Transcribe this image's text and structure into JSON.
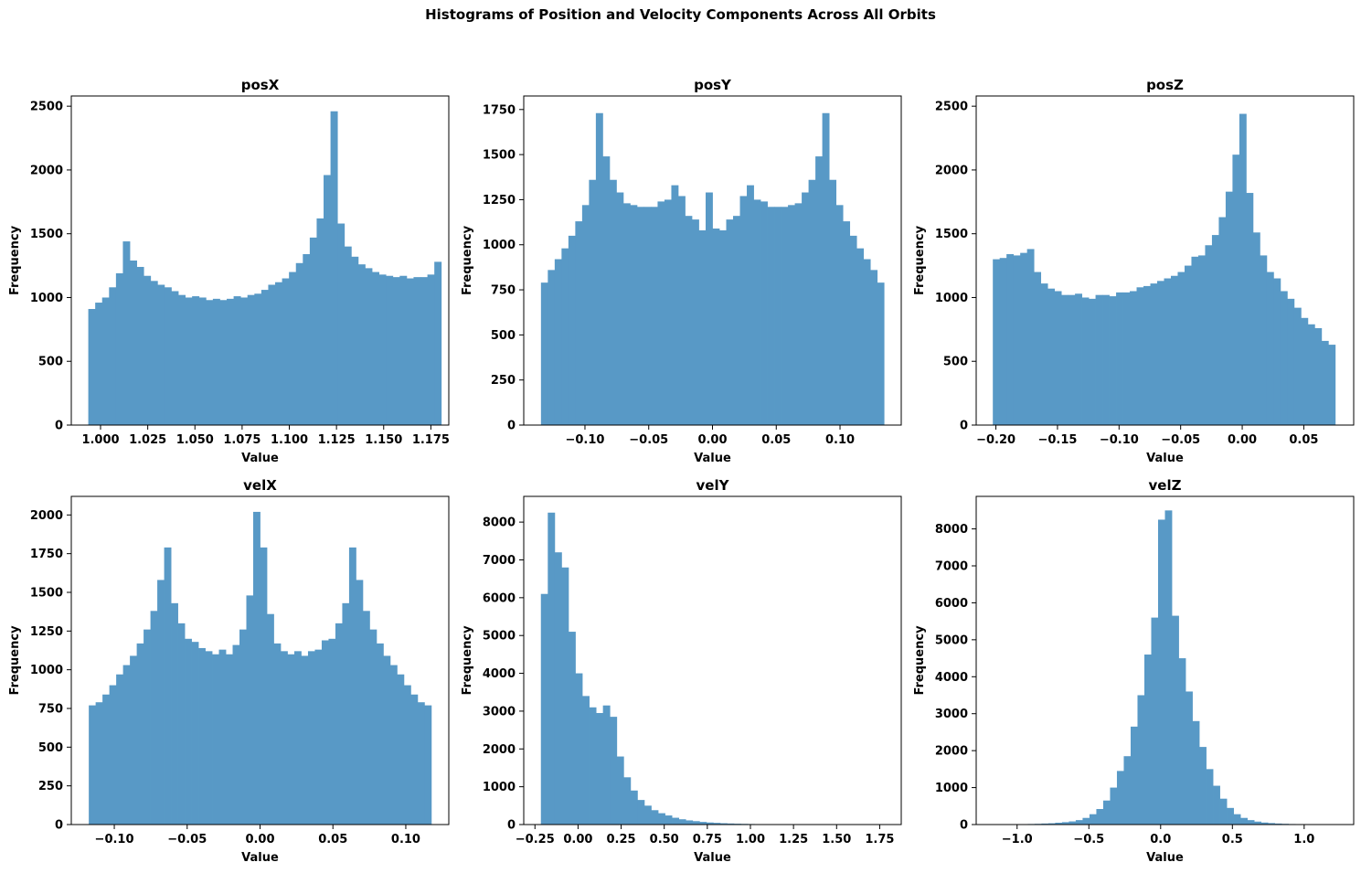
{
  "suptitle": "Histograms of Position and Velocity Components Across All Orbits",
  "chart_data": [
    {
      "type": "bar",
      "title": "posX",
      "xlabel": "Value",
      "ylabel": "Frequency",
      "bar_color": "#5899c6",
      "xlim": [
        0.9845,
        1.1845
      ],
      "ylim": [
        0,
        2580
      ],
      "xticks": [
        1.0,
        1.025,
        1.05,
        1.075,
        1.1,
        1.125,
        1.15,
        1.175
      ],
      "xtick_labels": [
        "1.000",
        "1.025",
        "1.050",
        "1.075",
        "1.100",
        "1.125",
        "1.150",
        "1.175"
      ],
      "yticks": [
        0,
        500,
        1000,
        1500,
        2000,
        2500
      ],
      "ytick_labels": [
        "0",
        "500",
        "1000",
        "1500",
        "2000",
        "2500"
      ],
      "bin_range": [
        0.9935,
        1.1805
      ],
      "values": [
        910,
        960,
        1000,
        1080,
        1190,
        1440,
        1290,
        1240,
        1170,
        1130,
        1100,
        1080,
        1050,
        1020,
        1000,
        1010,
        1000,
        980,
        990,
        980,
        990,
        1010,
        1000,
        1020,
        1030,
        1060,
        1100,
        1120,
        1150,
        1200,
        1270,
        1340,
        1470,
        1620,
        1960,
        2460,
        1580,
        1400,
        1320,
        1260,
        1230,
        1200,
        1180,
        1170,
        1160,
        1170,
        1150,
        1160,
        1160,
        1180,
        1280
      ]
    },
    {
      "type": "bar",
      "title": "posY",
      "xlabel": "Value",
      "ylabel": "Frequency",
      "bar_color": "#5899c6",
      "xlim": [
        -0.148,
        0.148
      ],
      "ylim": [
        0,
        1825
      ],
      "xticks": [
        -0.1,
        -0.05,
        0.0,
        0.05,
        0.1
      ],
      "xtick_labels": [
        "−0.10",
        "−0.05",
        "0.00",
        "0.05",
        "0.10"
      ],
      "yticks": [
        0,
        250,
        500,
        750,
        1000,
        1250,
        1500,
        1750
      ],
      "ytick_labels": [
        "0",
        "250",
        "500",
        "750",
        "1000",
        "1250",
        "1500",
        "1750"
      ],
      "bin_range": [
        -0.1345,
        0.1345
      ],
      "values": [
        790,
        860,
        920,
        980,
        1050,
        1130,
        1220,
        1360,
        1730,
        1490,
        1360,
        1290,
        1230,
        1220,
        1210,
        1210,
        1210,
        1240,
        1250,
        1330,
        1270,
        1160,
        1140,
        1080,
        1290,
        1090,
        1080,
        1140,
        1160,
        1270,
        1330,
        1250,
        1240,
        1210,
        1210,
        1210,
        1220,
        1230,
        1290,
        1360,
        1490,
        1730,
        1360,
        1220,
        1130,
        1050,
        980,
        920,
        860,
        790
      ]
    },
    {
      "type": "bar",
      "title": "posZ",
      "xlabel": "Value",
      "ylabel": "Frequency",
      "bar_color": "#5899c6",
      "xlim": [
        -0.216,
        0.0905
      ],
      "ylim": [
        0,
        2580
      ],
      "xticks": [
        -0.2,
        -0.15,
        -0.1,
        -0.05,
        0.0,
        0.05
      ],
      "xtick_labels": [
        "−0.20",
        "−0.15",
        "−0.10",
        "−0.05",
        "0.00",
        "0.05"
      ],
      "yticks": [
        0,
        500,
        1000,
        1500,
        2000,
        2500
      ],
      "ytick_labels": [
        "0",
        "500",
        "1000",
        "1500",
        "2000",
        "2500"
      ],
      "bin_range": [
        -0.2025,
        0.0755
      ],
      "values": [
        1300,
        1310,
        1340,
        1330,
        1350,
        1380,
        1200,
        1110,
        1070,
        1050,
        1020,
        1020,
        1030,
        1000,
        990,
        1020,
        1020,
        1010,
        1040,
        1040,
        1050,
        1080,
        1090,
        1110,
        1130,
        1150,
        1170,
        1200,
        1250,
        1320,
        1330,
        1410,
        1490,
        1630,
        1830,
        2120,
        2440,
        1820,
        1510,
        1330,
        1200,
        1150,
        1050,
        990,
        920,
        840,
        790,
        760,
        660,
        630
      ]
    },
    {
      "type": "bar",
      "title": "velX",
      "xlabel": "Value",
      "ylabel": "Frequency",
      "bar_color": "#5899c6",
      "xlim": [
        -0.1295,
        0.1295
      ],
      "ylim": [
        0,
        2120
      ],
      "xticks": [
        -0.1,
        -0.05,
        0.0,
        0.05,
        0.1
      ],
      "xtick_labels": [
        "−0.10",
        "−0.05",
        "0.00",
        "0.05",
        "0.10"
      ],
      "yticks": [
        0,
        250,
        500,
        750,
        1000,
        1250,
        1500,
        1750,
        2000
      ],
      "ytick_labels": [
        "0",
        "250",
        "500",
        "750",
        "1000",
        "1250",
        "1500",
        "1750",
        "2000"
      ],
      "bin_range": [
        -0.1175,
        0.1175
      ],
      "values": [
        770,
        790,
        840,
        900,
        970,
        1030,
        1090,
        1170,
        1260,
        1380,
        1580,
        1790,
        1430,
        1300,
        1200,
        1180,
        1140,
        1120,
        1100,
        1130,
        1100,
        1160,
        1260,
        1480,
        2020,
        1790,
        1360,
        1170,
        1120,
        1100,
        1120,
        1090,
        1120,
        1130,
        1190,
        1200,
        1300,
        1430,
        1790,
        1580,
        1380,
        1260,
        1170,
        1090,
        1030,
        970,
        900,
        840,
        790,
        770
      ]
    },
    {
      "type": "bar",
      "title": "velY",
      "xlabel": "Value",
      "ylabel": "Frequency",
      "bar_color": "#5899c6",
      "xlim": [
        -0.315,
        1.875
      ],
      "ylim": [
        0,
        8680
      ],
      "xticks": [
        -0.25,
        0.0,
        0.25,
        0.5,
        0.75,
        1.0,
        1.25,
        1.5,
        1.75
      ],
      "xtick_labels": [
        "−0.25",
        "0.00",
        "0.25",
        "0.50",
        "0.75",
        "1.00",
        "1.25",
        "1.50",
        "1.75"
      ],
      "yticks": [
        0,
        1000,
        2000,
        3000,
        4000,
        5000,
        6000,
        7000,
        8000
      ],
      "ytick_labels": [
        "0",
        "1000",
        "2000",
        "3000",
        "4000",
        "5000",
        "6000",
        "7000",
        "8000"
      ],
      "bin_range": [
        -0.2155,
        1.7845
      ],
      "values": [
        6100,
        8250,
        7200,
        6800,
        5100,
        4000,
        3400,
        3100,
        2950,
        3150,
        2850,
        1800,
        1250,
        900,
        650,
        500,
        380,
        300,
        240,
        180,
        140,
        110,
        90,
        70,
        55,
        45,
        35,
        28,
        22,
        18,
        14,
        11,
        9,
        7,
        6,
        5,
        4,
        3,
        3,
        2,
        2,
        2,
        1,
        1,
        1,
        1,
        1,
        1,
        1,
        1
      ]
    },
    {
      "type": "bar",
      "title": "velZ",
      "xlabel": "Value",
      "ylabel": "Frequency",
      "bar_color": "#5899c6",
      "xlim": [
        -1.285,
        1.345
      ],
      "ylim": [
        0,
        8880
      ],
      "xticks": [
        -1.0,
        -0.5,
        0.0,
        0.5,
        1.0
      ],
      "xtick_labels": [
        "−1.0",
        "−0.5",
        "0.0",
        "0.5",
        "1.0"
      ],
      "yticks": [
        0,
        1000,
        2000,
        3000,
        4000,
        5000,
        6000,
        7000,
        8000
      ],
      "ytick_labels": [
        "0",
        "1000",
        "2000",
        "3000",
        "4000",
        "5000",
        "6000",
        "7000",
        "8000"
      ],
      "bin_range": [
        -1.165,
        1.225
      ],
      "values": [
        2,
        3,
        5,
        8,
        12,
        15,
        20,
        28,
        35,
        50,
        65,
        85,
        120,
        180,
        280,
        420,
        650,
        1000,
        1450,
        1850,
        2650,
        3500,
        4600,
        5600,
        8250,
        8500,
        5650,
        4500,
        3600,
        2800,
        2100,
        1500,
        1050,
        700,
        450,
        280,
        180,
        120,
        80,
        55,
        40,
        28,
        20,
        14,
        10,
        7,
        5,
        3,
        2,
        2
      ]
    }
  ]
}
